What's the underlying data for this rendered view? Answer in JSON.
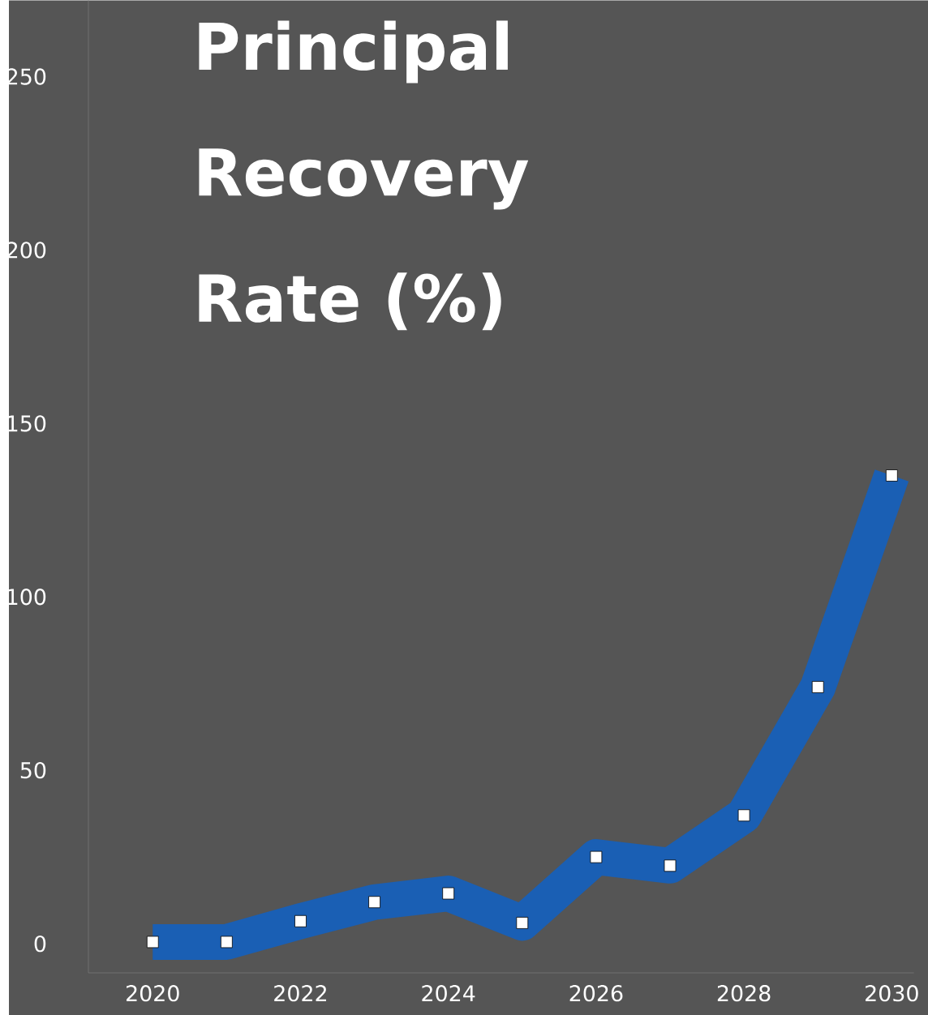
{
  "chart_data": {
    "type": "line",
    "title": "Principal Recovery Rate (%)",
    "x": [
      2020,
      2021,
      2022,
      2023,
      2024,
      2025,
      2026,
      2027,
      2028,
      2029,
      2030
    ],
    "values": [
      0.5,
      0.5,
      6.5,
      12,
      14.5,
      6,
      25,
      22.5,
      37,
      74,
      135
    ],
    "color": "#1a5fb4",
    "marker": "square",
    "xlim": [
      2019.13,
      2030.3
    ],
    "ylim": [
      -8.4,
      272
    ],
    "xticks": [
      2020,
      2022,
      2024,
      2026,
      2028,
      2030
    ],
    "yticks": [
      0,
      50,
      100,
      150,
      200,
      250
    ]
  }
}
